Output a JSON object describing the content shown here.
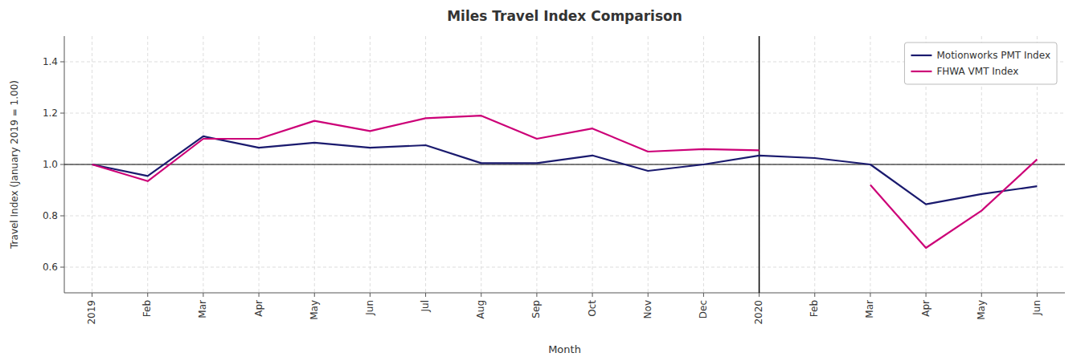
{
  "chart_data": {
    "type": "line",
    "title": "Miles Travel Index Comparison",
    "x_label": "Month",
    "y_label": "Travel Index (January 2019 = 1.00)",
    "categories": [
      "2019",
      "Feb",
      "Mar",
      "Apr",
      "May",
      "Jun",
      "Jul",
      "Aug",
      "Sep",
      "Oct",
      "Nov",
      "Dec",
      "2020",
      "Feb",
      "Mar",
      "Apr",
      "May",
      "Jun"
    ],
    "series": [
      {
        "name": "Motionworks PMT Index",
        "color": "#1a1a6e",
        "values": [
          1.0,
          0.955,
          1.11,
          1.065,
          1.085,
          1.065,
          1.075,
          1.005,
          1.005,
          1.035,
          0.975,
          1.0,
          1.035,
          1.025,
          1.0,
          0.845,
          0.885,
          0.915
        ]
      },
      {
        "name": "FHWA VMT Index",
        "color": "#cc0077",
        "values": [
          1.0,
          0.935,
          1.1,
          1.1,
          1.17,
          1.13,
          1.18,
          1.19,
          1.1,
          1.14,
          1.05,
          1.06,
          1.055,
          null,
          0.92,
          0.675,
          0.82,
          1.02
        ]
      }
    ],
    "ylim": [
      0.5,
      1.5
    ],
    "yticks": [
      0.6,
      0.8,
      {
        "value": 1.0,
        "label": "1.0"
      },
      1.2,
      1.4
    ],
    "vline": "2020",
    "hline": 1.0,
    "grid": true,
    "legend": "upper right"
  }
}
